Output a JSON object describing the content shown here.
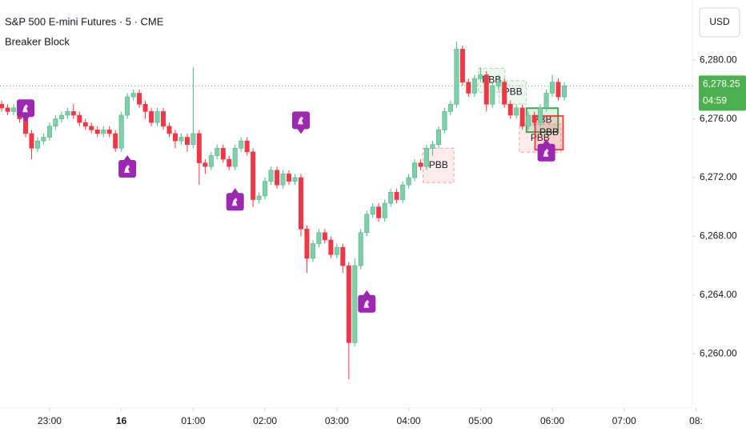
{
  "chart_data": {
    "type": "candlestick",
    "title": "S&P 500 E-mini Futures · 5 · CME",
    "subtitle": "Breaker Block",
    "currency": "USD",
    "up_color": "#7fcfa8",
    "down_color": "#f23645",
    "xlim": [
      22.31,
      31.95
    ],
    "ylim": [
      6256.3,
      6284.1
    ],
    "xticks": [
      {
        "value": 23,
        "label": "23:00"
      },
      {
        "value": 24,
        "label": "16"
      },
      {
        "value": 25,
        "label": "01:00"
      },
      {
        "value": 26,
        "label": "02:00"
      },
      {
        "value": 27,
        "label": "03:00"
      },
      {
        "value": 28,
        "label": "04:00"
      },
      {
        "value": 29,
        "label": "05:00"
      },
      {
        "value": 30,
        "label": "06:00"
      },
      {
        "value": 31,
        "label": "07:00"
      },
      {
        "value": 32,
        "label": "08:"
      }
    ],
    "yticks": [
      {
        "value": 6260,
        "label": "6,260.00"
      },
      {
        "value": 6264,
        "label": "6,264.00"
      },
      {
        "value": 6268,
        "label": "6,268.00"
      },
      {
        "value": 6272,
        "label": "6,272.00"
      },
      {
        "value": 6276,
        "label": "6,276.00"
      },
      {
        "value": 6280,
        "label": "6,280.00"
      }
    ],
    "x": [
      22.333,
      22.417,
      22.5,
      22.583,
      22.667,
      22.75,
      22.833,
      22.917,
      23,
      23.083,
      23.167,
      23.25,
      23.333,
      23.417,
      23.5,
      23.583,
      23.667,
      23.75,
      23.833,
      23.917,
      24,
      24.083,
      24.167,
      24.25,
      24.333,
      24.417,
      24.5,
      24.583,
      24.667,
      24.75,
      24.833,
      24.917,
      25,
      25.083,
      25.167,
      25.25,
      25.333,
      25.417,
      25.5,
      25.583,
      25.667,
      25.75,
      25.833,
      25.917,
      26,
      26.083,
      26.167,
      26.25,
      26.333,
      26.417,
      26.5,
      26.583,
      26.667,
      26.75,
      26.833,
      26.917,
      27,
      27.083,
      27.167,
      27.25,
      27.333,
      27.417,
      27.5,
      27.583,
      27.667,
      27.75,
      27.833,
      27.917,
      28,
      28.083,
      28.167,
      28.25,
      28.333,
      28.417,
      28.5,
      28.583,
      28.667,
      28.75,
      28.833,
      28.917,
      29,
      29.083,
      29.167,
      29.25,
      29.333,
      29.417,
      29.5,
      29.583,
      29.667,
      29.75,
      29.833,
      29.917,
      30,
      30.083,
      30.167
    ],
    "open": [
      6277.0,
      6276.75,
      6276.5,
      6276.75,
      6276.0,
      6275.0,
      6274.0,
      6274.5,
      6274.75,
      6275.5,
      6276.0,
      6276.25,
      6276.5,
      6276.25,
      6275.75,
      6275.5,
      6275.25,
      6275.0,
      6275.25,
      6275.0,
      6274.0,
      6276.25,
      6277.5,
      6277.75,
      6277.0,
      6276.5,
      6275.75,
      6276.5,
      6275.5,
      6275.0,
      6274.5,
      6274.75,
      6274.25,
      6275.0,
      6273.0,
      6272.75,
      6273.5,
      6274.0,
      6273.25,
      6272.75,
      6274.0,
      6274.5,
      6273.75,
      6270.5,
      6270.75,
      6271.75,
      6272.5,
      6271.5,
      6272.25,
      6271.75,
      6272.0,
      6268.5,
      6266.5,
      6267.5,
      6268.25,
      6267.75,
      6266.75,
      6267.25,
      6266.0,
      6260.75,
      6266.0,
      6268.25,
      6269.5,
      6270.0,
      6269.25,
      6270.25,
      6271.0,
      6270.5,
      6271.5,
      6272.0,
      6273.0,
      6272.75,
      6274.0,
      6274.25,
      6275.25,
      6276.5,
      6277.0,
      6280.75,
      6278.5,
      6277.75,
      6278.75,
      6279.0,
      6277.0,
      6278.25,
      6278.5,
      6277.0,
      6276.25,
      6276.75,
      6275.5,
      6276.25,
      6275.75,
      6276.75,
      6277.75,
      6278.5,
      6277.5
    ],
    "high": [
      6277.25,
      6277.0,
      6277.0,
      6277.0,
      6276.25,
      6275.25,
      6274.75,
      6275.0,
      6275.75,
      6276.25,
      6276.5,
      6276.75,
      6277.0,
      6276.5,
      6276.0,
      6275.75,
      6275.5,
      6275.5,
      6275.5,
      6275.25,
      6276.5,
      6277.75,
      6278.0,
      6278.0,
      6277.25,
      6276.75,
      6276.75,
      6276.75,
      6275.75,
      6275.25,
      6275.0,
      6275.0,
      6279.5,
      6275.25,
      6273.25,
      6273.75,
      6274.25,
      6274.25,
      6273.5,
      6274.25,
      6274.75,
      6274.75,
      6274.0,
      6271.0,
      6272.0,
      6272.75,
      6272.75,
      6272.5,
      6272.5,
      6272.25,
      6272.25,
      6268.75,
      6267.75,
      6268.5,
      6268.5,
      6268.0,
      6267.5,
      6267.5,
      6266.25,
      6266.5,
      6268.5,
      6269.75,
      6270.25,
      6270.25,
      6270.5,
      6271.25,
      6271.25,
      6271.75,
      6272.25,
      6273.25,
      6273.25,
      6274.25,
      6274.5,
      6275.5,
      6276.75,
      6277.25,
      6281.25,
      6281.0,
      6278.75,
      6279.0,
      6279.5,
      6279.25,
      6278.5,
      6279.0,
      6278.75,
      6277.25,
      6277.0,
      6277.0,
      6276.5,
      6276.5,
      6277.0,
      6278.0,
      6279.0,
      6278.75,
      6278.5
    ],
    "low": [
      6276.5,
      6276.25,
      6276.25,
      6275.75,
      6274.75,
      6273.25,
      6273.75,
      6274.25,
      6274.5,
      6275.25,
      6275.75,
      6276.0,
      6276.0,
      6275.5,
      6275.25,
      6275.0,
      6274.75,
      6274.75,
      6274.75,
      6273.75,
      6273.75,
      6276.0,
      6277.25,
      6276.75,
      6276.0,
      6275.5,
      6275.5,
      6275.25,
      6274.75,
      6274.0,
      6274.25,
      6273.75,
      6274.0,
      6271.5,
      6272.25,
      6272.5,
      6273.25,
      6273.0,
      6272.5,
      6272.5,
      6273.75,
      6273.5,
      6270.0,
      6270.25,
      6270.5,
      6271.5,
      6271.25,
      6271.25,
      6271.5,
      6271.5,
      6268.0,
      6265.5,
      6266.25,
      6267.25,
      6267.5,
      6266.5,
      6266.5,
      6265.5,
      6258.25,
      6260.5,
      6265.75,
      6268.0,
      6269.25,
      6269.0,
      6269.0,
      6270.0,
      6270.25,
      6270.25,
      6271.25,
      6271.75,
      6272.5,
      6272.5,
      6273.5,
      6274.0,
      6275.0,
      6276.25,
      6276.75,
      6278.25,
      6277.5,
      6277.5,
      6278.5,
      6276.5,
      6276.75,
      6278.0,
      6276.75,
      6276.0,
      6276.0,
      6275.25,
      6275.25,
      6275.5,
      6275.5,
      6276.5,
      6277.5,
      6277.25,
      6277.25
    ],
    "close": [
      6276.75,
      6276.5,
      6276.75,
      6276.0,
      6275.0,
      6274.0,
      6274.5,
      6274.75,
      6275.5,
      6276.0,
      6276.25,
      6276.5,
      6276.25,
      6275.75,
      6275.5,
      6275.25,
      6275.0,
      6275.25,
      6275.0,
      6274.0,
      6276.25,
      6277.5,
      6277.75,
      6277.0,
      6276.5,
      6275.75,
      6276.5,
      6275.5,
      6275.0,
      6274.5,
      6274.75,
      6274.25,
      6275.0,
      6273.0,
      6272.75,
      6273.5,
      6274.0,
      6273.25,
      6272.75,
      6274.0,
      6274.5,
      6273.75,
      6270.5,
      6270.75,
      6271.75,
      6272.5,
      6271.5,
      6272.25,
      6271.75,
      6272.0,
      6268.5,
      6266.5,
      6267.5,
      6268.25,
      6267.75,
      6266.75,
      6267.25,
      6266.0,
      6260.75,
      6266.0,
      6268.25,
      6269.5,
      6270.0,
      6269.25,
      6270.25,
      6271.0,
      6270.5,
      6271.5,
      6272.0,
      6273.0,
      6272.75,
      6274.0,
      6274.25,
      6275.25,
      6276.5,
      6277.0,
      6280.75,
      6278.5,
      6277.75,
      6278.75,
      6279.0,
      6277.0,
      6278.25,
      6278.5,
      6277.0,
      6276.25,
      6276.75,
      6275.5,
      6276.25,
      6275.75,
      6276.75,
      6277.75,
      6278.5,
      6277.5,
      6278.25
    ],
    "last_price": {
      "value": 6278.25,
      "label": "6,278.25"
    },
    "countdown": "04:59",
    "boxes": [
      {
        "label": "PBB",
        "x": [
          28.2,
          28.63
        ],
        "y": [
          6271.66,
          6274.0
        ],
        "color": "#f23645",
        "dashed": true
      },
      {
        "label": "PBB",
        "x": [
          28.97,
          29.34
        ],
        "y": [
          6277.8,
          6279.45
        ],
        "color": "#4caf50",
        "dashed": true
      },
      {
        "label": "PBB",
        "x": [
          29.26,
          29.64
        ],
        "y": [
          6277.0,
          6278.6
        ],
        "color": "#4caf50",
        "dashed": true
      },
      {
        "label": "PBB",
        "x": [
          29.54,
          30.12
        ],
        "y": [
          6273.73,
          6275.64
        ],
        "color": "#f23645",
        "dashed": true
      },
      {
        "label": "PBB",
        "x": [
          29.64,
          30.08
        ],
        "y": [
          6275.1,
          6276.73
        ],
        "color": "#2e9e3e",
        "dashed": false
      },
      {
        "label": "PBB",
        "x": [
          29.76,
          30.15
        ],
        "y": [
          6273.9,
          6276.2
        ],
        "color": "#e53935",
        "dashed": false
      }
    ],
    "signals_above": {
      "x": [
        22.667,
        26.5
      ],
      "y": [
        6276.73,
        6275.9
      ]
    },
    "signals_below": {
      "x": [
        24.083,
        25.583,
        27.417,
        29.917
      ],
      "y": [
        6272.6,
        6270.35,
        6263.4,
        6273.7
      ]
    },
    "signal_color": "#9c27b0"
  }
}
